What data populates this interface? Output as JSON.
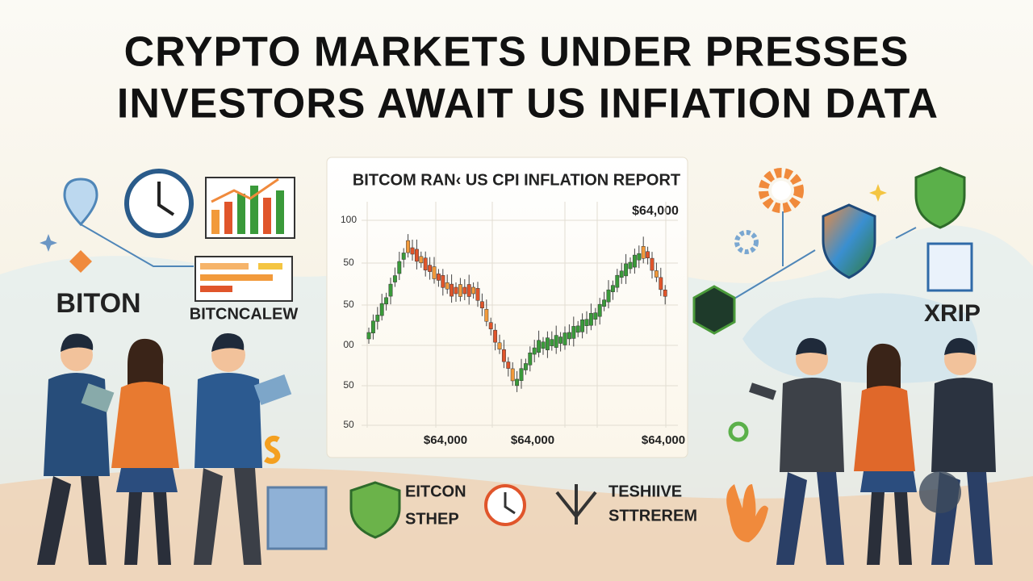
{
  "header": {
    "lines": [
      "CRYPTO MARKETS UNDER PRESSES",
      "INVESTORS AWAIT US INFIATION DATA"
    ]
  },
  "left_labels": [
    "BITON",
    "BITCNCALEW"
  ],
  "chart": {
    "title": "BITCOM RAN‹ US CPI INFLATION REPORT",
    "price_label": "$64,000",
    "y_labels": [
      "100",
      "50",
      "50",
      "00",
      "50",
      "50"
    ],
    "x_labels": [
      "$64,000",
      "$64,000",
      "$64,000"
    ]
  },
  "bottom_badges": [
    [
      "EITCON",
      "STHEP"
    ],
    [
      "TESHIIVE",
      "STTREREM"
    ]
  ],
  "right_label": "XRIP"
}
